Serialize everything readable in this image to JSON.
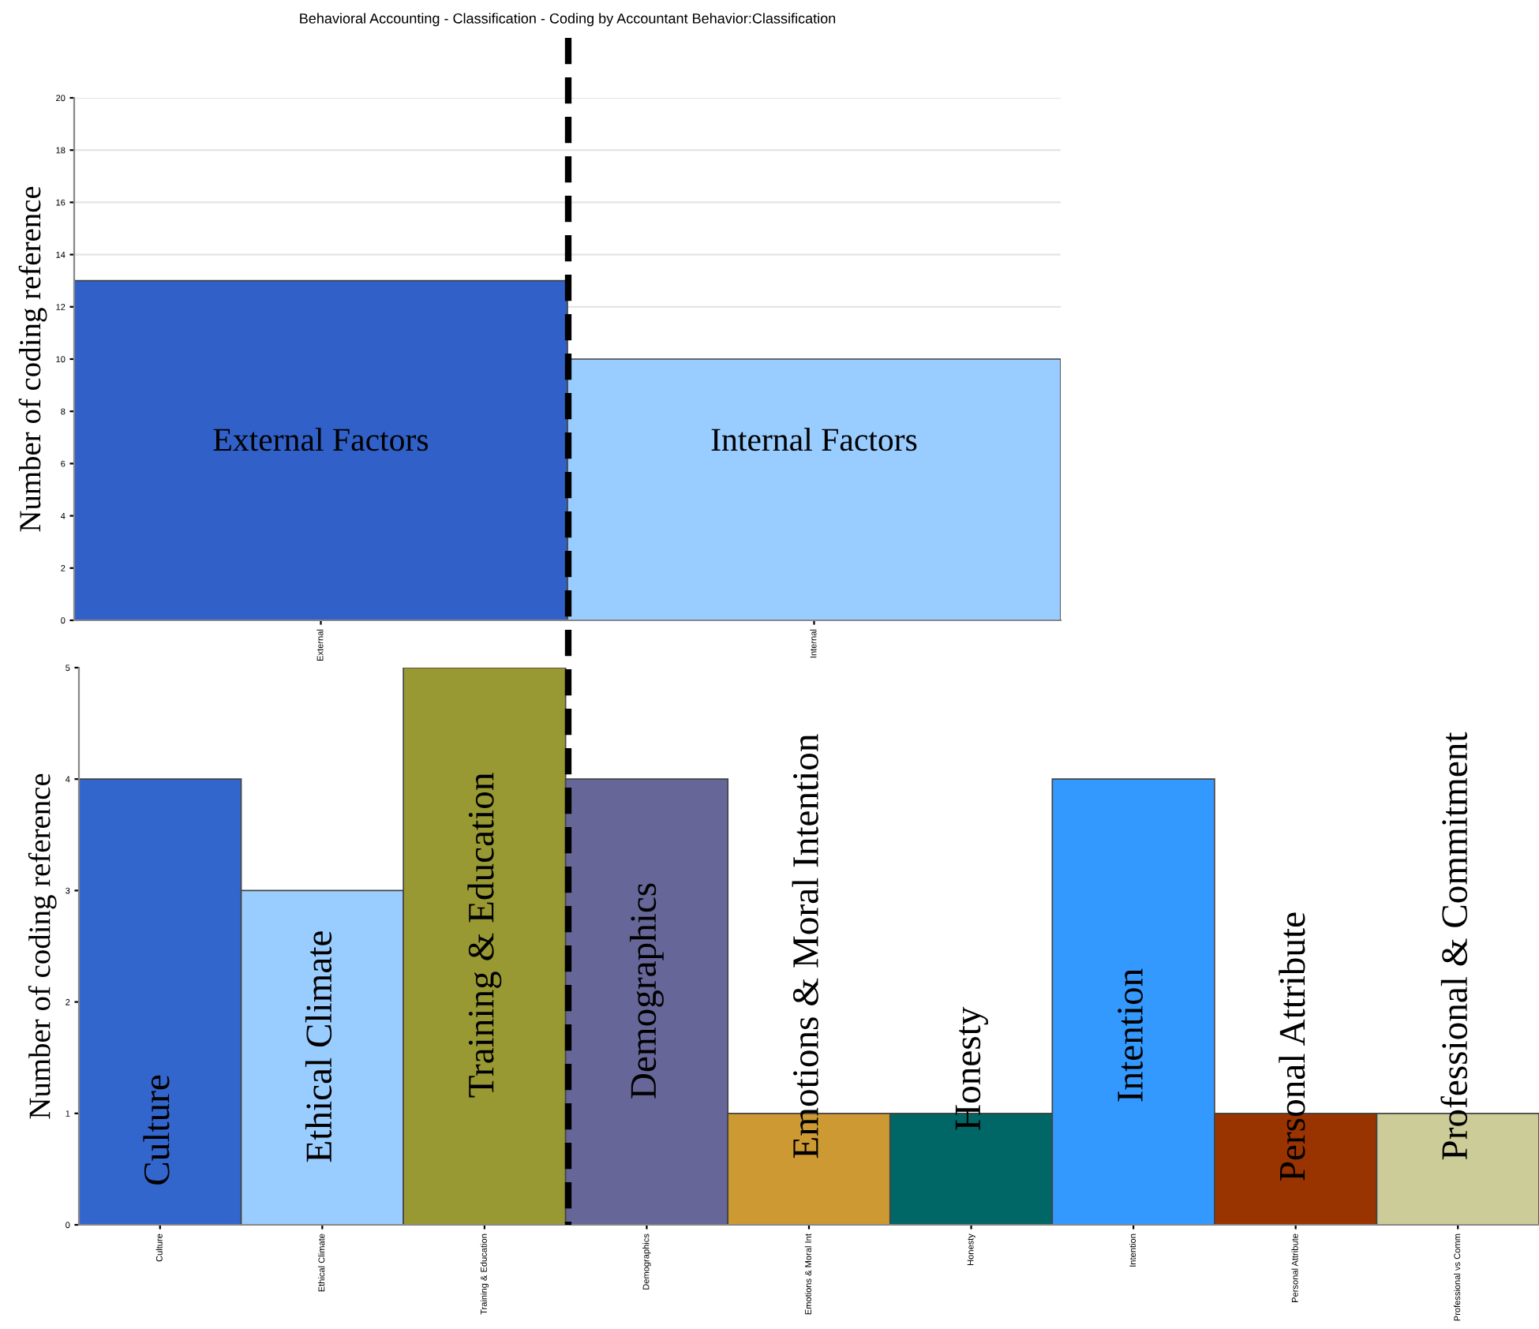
{
  "chart_data": [
    {
      "type": "bar",
      "title": "Behavioral Accounting - Classification - Coding by Accountant Behavior:Classification",
      "ylabel": "Number of coding reference",
      "categories": [
        "External",
        "Internal"
      ],
      "values": [
        13,
        10
      ],
      "colors": [
        "#3060c8",
        "#99ccff"
      ],
      "ylim": [
        0,
        20
      ],
      "yticks": [
        0,
        2,
        4,
        6,
        8,
        10,
        12,
        14,
        16,
        18,
        20
      ],
      "grid": "y",
      "annotations": [
        "External Factors",
        "Internal Factors"
      ]
    },
    {
      "type": "bar",
      "ylabel": "Number of coding reference",
      "categories": [
        "Culture",
        "Ethical Climate",
        "Training & Education",
        "Demographics",
        "Emotions & Moral Int",
        "Honesty",
        "Intention",
        "Personal Attribute",
        "Professional vs Comm"
      ],
      "values": [
        4,
        3,
        5,
        4,
        1,
        1,
        4,
        1,
        1
      ],
      "colors": [
        "#3366cc",
        "#99ccff",
        "#999933",
        "#666699",
        "#cc9933",
        "#006666",
        "#3399ff",
        "#993300",
        "#cccc99"
      ],
      "ylim": [
        0,
        5
      ],
      "yticks": [
        0,
        1,
        2,
        3,
        4,
        5
      ],
      "annotations": [
        "Culture",
        "Ethical Climate",
        "Training & Education",
        "Demographics",
        "Emotions & Moral Intention",
        "Honesty",
        "Intention",
        "Personal Attribute",
        "Professional & Commitment"
      ]
    }
  ]
}
